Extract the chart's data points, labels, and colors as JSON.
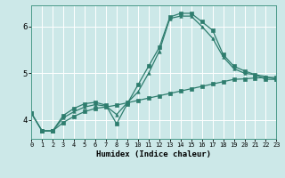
{
  "xlabel": "Humidex (Indice chaleur)",
  "bg_color": "#cce8e8",
  "grid_color": "#ffffff",
  "line_color": "#2e7d6e",
  "x_min": 0,
  "x_max": 23,
  "y_min": 3.6,
  "y_max": 6.45,
  "yticks": [
    4,
    5,
    6
  ],
  "xticks": [
    0,
    1,
    2,
    3,
    4,
    5,
    6,
    7,
    8,
    9,
    10,
    11,
    12,
    13,
    14,
    15,
    16,
    17,
    18,
    19,
    20,
    21,
    22,
    23
  ],
  "series1_x": [
    0,
    1,
    2,
    3,
    4,
    5,
    6,
    7,
    8,
    9,
    10,
    11,
    12,
    13,
    14,
    15,
    16,
    17,
    18,
    19,
    20,
    21,
    22,
    23
  ],
  "series1_y": [
    4.15,
    3.77,
    3.77,
    4.1,
    4.25,
    4.35,
    4.38,
    4.32,
    3.92,
    4.35,
    4.75,
    5.15,
    5.55,
    6.2,
    6.28,
    6.28,
    6.1,
    5.92,
    5.4,
    5.15,
    5.05,
    4.97,
    4.87,
    4.87
  ],
  "series2_x": [
    0,
    1,
    2,
    3,
    4,
    5,
    6,
    7,
    8,
    9,
    10,
    11,
    12,
    13,
    14,
    15,
    16,
    17,
    18,
    19,
    20,
    21,
    22,
    23
  ],
  "series2_y": [
    4.15,
    3.77,
    3.77,
    3.95,
    4.08,
    4.18,
    4.25,
    4.28,
    4.32,
    4.37,
    4.42,
    4.47,
    4.52,
    4.57,
    4.62,
    4.67,
    4.72,
    4.77,
    4.82,
    4.87,
    4.88,
    4.9,
    4.91,
    4.91
  ],
  "series3_x": [
    0,
    1,
    2,
    3,
    4,
    5,
    6,
    7,
    8,
    9,
    10,
    11,
    12,
    13,
    14,
    15,
    16,
    17,
    18,
    19,
    20,
    21,
    22,
    23
  ],
  "series3_y": [
    4.15,
    3.77,
    3.77,
    4.05,
    4.18,
    4.28,
    4.33,
    4.3,
    4.12,
    4.37,
    4.6,
    5.0,
    5.47,
    6.17,
    6.22,
    6.22,
    6.0,
    5.75,
    5.35,
    5.1,
    5.0,
    4.97,
    4.93,
    4.87
  ]
}
